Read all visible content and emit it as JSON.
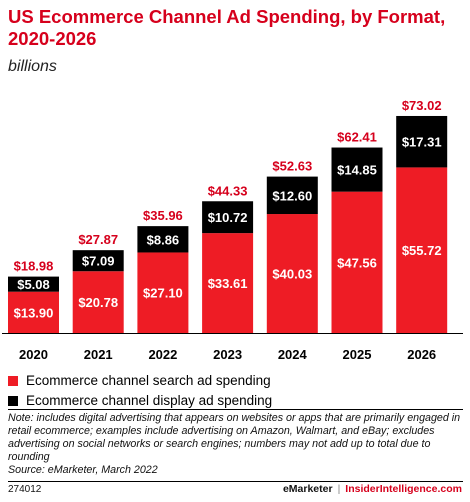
{
  "header": {
    "title": "US Ecommerce Channel Ad Spending, by Format, 2020-2026",
    "subtitle": "billions"
  },
  "colors": {
    "accent": "#d6001c",
    "search": "#ee1c25",
    "display": "#000000",
    "axis": "#000000"
  },
  "chart_data": {
    "type": "bar",
    "stacked": true,
    "categories": [
      "2020",
      "2021",
      "2022",
      "2023",
      "2024",
      "2025",
      "2026"
    ],
    "series": [
      {
        "name": "Ecommerce channel search ad spending",
        "values": [
          13.9,
          20.78,
          27.1,
          33.61,
          40.03,
          47.56,
          55.72
        ],
        "labels": [
          "$13.90",
          "$20.78",
          "$27.10",
          "$33.61",
          "$40.03",
          "$47.56",
          "$55.72"
        ]
      },
      {
        "name": "Ecommerce channel display ad spending",
        "values": [
          5.08,
          7.09,
          8.86,
          10.72,
          12.6,
          14.85,
          17.31
        ],
        "labels": [
          "$5.08",
          "$7.09",
          "$8.86",
          "$10.72",
          "$12.60",
          "$14.85",
          "$17.31"
        ]
      }
    ],
    "totals": [
      18.98,
      27.87,
      35.96,
      44.33,
      52.63,
      62.41,
      73.02
    ],
    "total_labels": [
      "$18.98",
      "$27.87",
      "$35.96",
      "$44.33",
      "$52.63",
      "$62.41",
      "$73.02"
    ],
    "ylim": [
      0,
      73.02
    ],
    "grid": false,
    "legend_position": "bottom-left"
  },
  "footnote": {
    "note": "Note: includes digital advertising that appears on websites or apps that are primarily engaged in retail ecommerce; examples include advertising on Amazon, Walmart, and eBay; excludes advertising on social networks or search engines; numbers may not add up to total due to rounding",
    "source": "Source: eMarketer, March 2022"
  },
  "footer": {
    "chart_id": "274012",
    "brand_left": "eMarketer",
    "separator": "|",
    "brand_right": "InsiderIntelligence.com"
  }
}
